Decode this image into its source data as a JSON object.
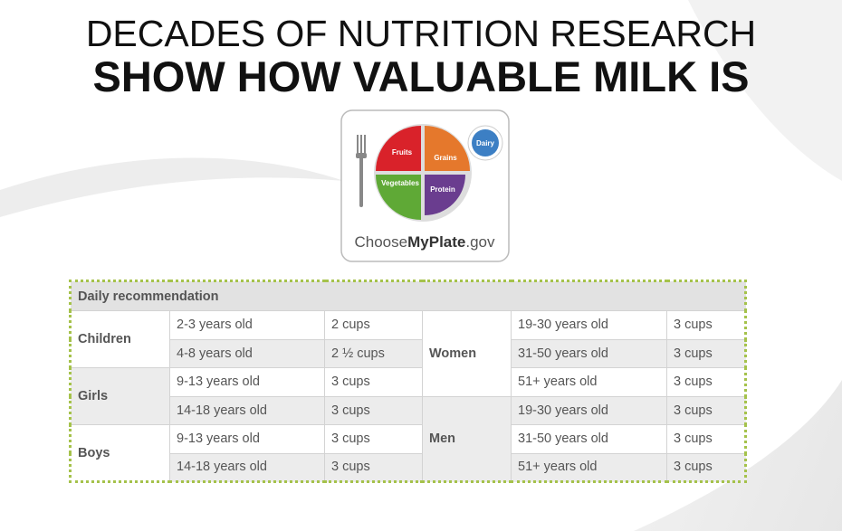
{
  "title": {
    "line1": "DECADES OF NUTRITION RESEARCH",
    "line2": "SHOW HOW VALUABLE MILK IS"
  },
  "logo": {
    "fruits": "Fruits",
    "grains": "Grains",
    "vegetables": "Vegetables",
    "protein": "Protein",
    "dairy": "Dairy",
    "brand_choose": "Choose",
    "brand_myplate": "MyPlate",
    "brand_gov": ".gov"
  },
  "table": {
    "header": "Daily recommendation",
    "left_sections": [
      {
        "group": "Children",
        "rows": [
          {
            "age": "2-3 years old",
            "amount": "2 cups"
          },
          {
            "age": "4-8 years old",
            "amount": "2 ½ cups"
          }
        ]
      },
      {
        "group": "Girls",
        "rows": [
          {
            "age": "9-13 years old",
            "amount": "3 cups"
          },
          {
            "age": "14-18 years old",
            "amount": "3 cups"
          }
        ]
      },
      {
        "group": "Boys",
        "rows": [
          {
            "age": "9-13 years old",
            "amount": "3 cups"
          },
          {
            "age": "14-18 years old",
            "amount": "3 cups"
          }
        ]
      }
    ],
    "right_sections": [
      {
        "group": "Women",
        "rows": [
          {
            "age": "19-30 years old",
            "amount": "3 cups"
          },
          {
            "age": "31-50 years old",
            "amount": "3 cups"
          },
          {
            "age": "51+ years old",
            "amount": "3 cups"
          }
        ]
      },
      {
        "group": "Men",
        "rows": [
          {
            "age": "19-30 years old",
            "amount": "3 cups"
          },
          {
            "age": "31-50 years old",
            "amount": "3 cups"
          },
          {
            "age": "51+ years old",
            "amount": "3 cups"
          }
        ]
      }
    ]
  }
}
